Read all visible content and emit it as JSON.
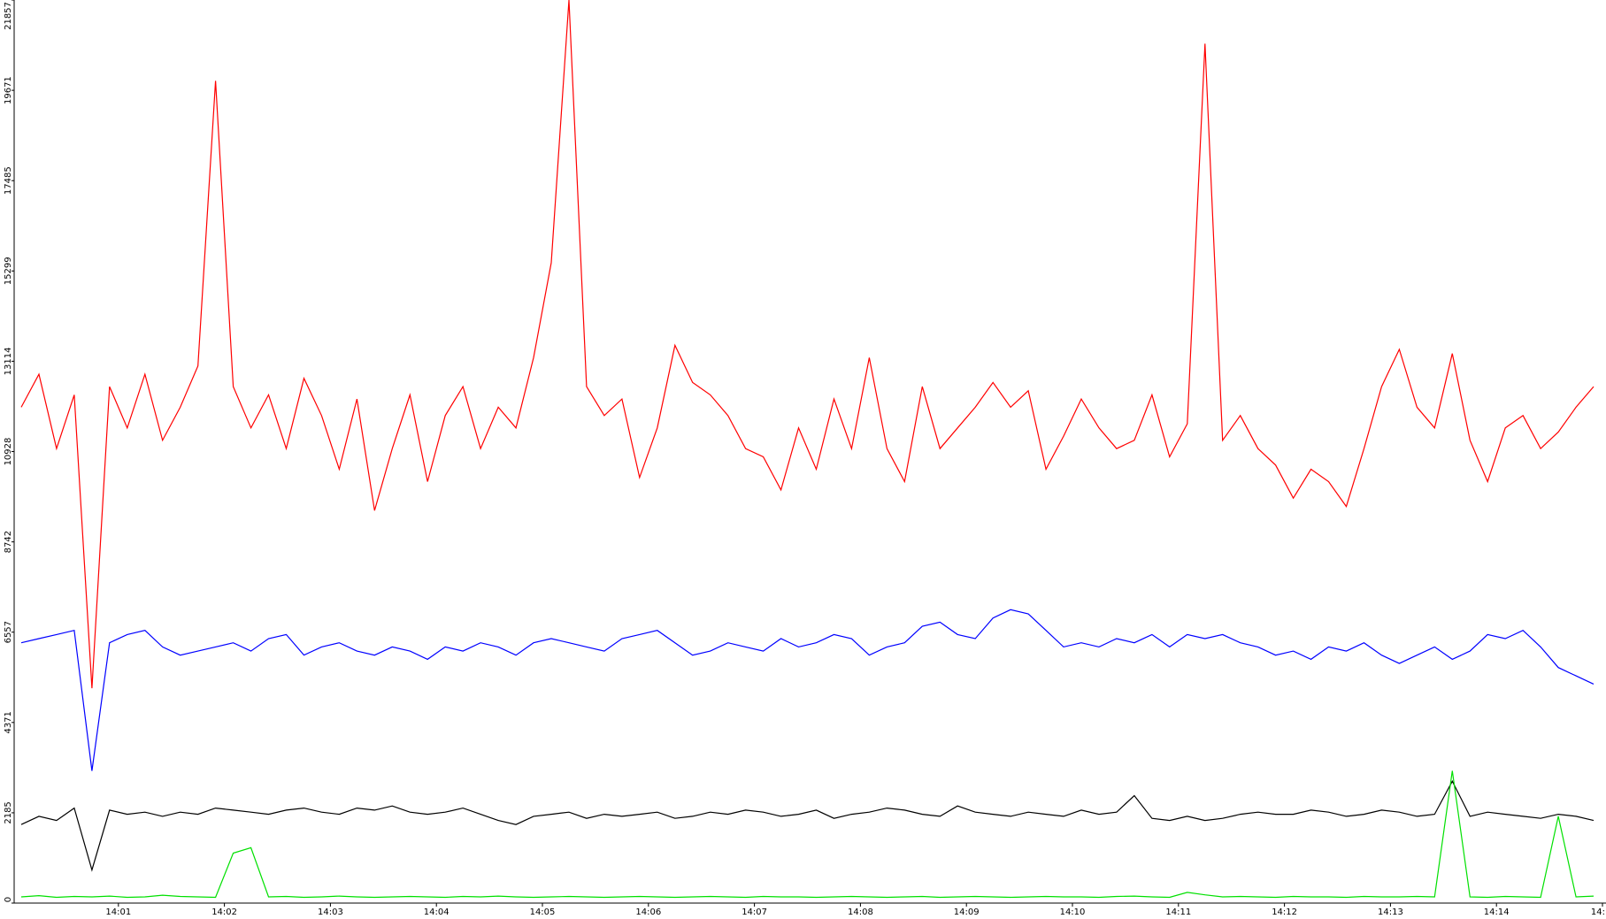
{
  "chart_data": {
    "type": "line",
    "x": [
      5,
      15,
      25,
      35,
      45,
      55,
      65,
      75,
      85,
      95,
      105,
      115,
      125,
      135,
      145,
      155,
      165,
      175,
      185,
      195,
      205,
      215,
      225,
      235,
      245,
      255,
      265,
      275,
      285,
      295,
      305,
      315,
      325,
      335,
      345,
      355,
      365,
      375,
      385,
      395,
      405,
      415,
      425,
      435,
      445,
      455,
      465,
      475,
      485,
      495,
      505,
      515,
      525,
      535,
      545,
      555,
      565,
      575,
      585,
      595,
      605,
      615,
      625,
      635,
      645,
      655,
      665,
      675,
      685,
      695,
      705,
      715,
      725,
      735,
      745,
      755,
      765,
      775,
      785,
      795,
      805,
      815,
      825,
      835,
      845,
      855,
      865,
      875,
      885,
      895
    ],
    "series": [
      {
        "color": "#ff0000",
        "values": [
          12000,
          12800,
          11000,
          12300,
          5200,
          12500,
          11500,
          12800,
          11200,
          12000,
          13000,
          19900,
          12500,
          11500,
          12300,
          11000,
          12700,
          11800,
          10500,
          12200,
          9500,
          11000,
          12300,
          10200,
          11800,
          12500,
          11000,
          12000,
          11500,
          13200,
          15500,
          21857,
          12500,
          11800,
          12200,
          10300,
          11500,
          13500,
          12600,
          12300,
          11800,
          11000,
          10800,
          10000,
          11500,
          10500,
          12200,
          11000,
          13200,
          11000,
          10200,
          12500,
          11000,
          11500,
          12000,
          12600,
          12000,
          12400,
          10500,
          11300,
          12200,
          11500,
          11000,
          11200,
          12300,
          10800,
          11600,
          20800,
          11200,
          11800,
          11000,
          10600,
          9800,
          10500,
          10200,
          9600,
          11000,
          12500,
          13400,
          12000,
          11500,
          13300,
          11200,
          10200,
          11500,
          11800,
          11000,
          11400,
          12000,
          12500
        ]
      },
      {
        "color": "#0000ff",
        "values": [
          6300,
          6400,
          6500,
          6600,
          3200,
          6300,
          6500,
          6600,
          6200,
          6000,
          6100,
          6200,
          6300,
          6100,
          6400,
          6500,
          6000,
          6200,
          6300,
          6100,
          6000,
          6200,
          6100,
          5900,
          6200,
          6100,
          6300,
          6200,
          6000,
          6300,
          6400,
          6300,
          6200,
          6100,
          6400,
          6500,
          6600,
          6300,
          6000,
          6100,
          6300,
          6200,
          6100,
          6400,
          6200,
          6300,
          6500,
          6400,
          6000,
          6200,
          6300,
          6700,
          6800,
          6500,
          6400,
          6900,
          7100,
          7000,
          6600,
          6200,
          6300,
          6200,
          6400,
          6300,
          6500,
          6200,
          6500,
          6400,
          6500,
          6300,
          6200,
          6000,
          6100,
          5900,
          6200,
          6100,
          6300,
          6000,
          5800,
          6000,
          6200,
          5900,
          6100,
          6500,
          6400,
          6600,
          6200,
          5700,
          5500,
          5300
        ]
      },
      {
        "color": "#000000",
        "values": [
          1900,
          2100,
          2000,
          2300,
          800,
          2250,
          2150,
          2200,
          2100,
          2200,
          2150,
          2300,
          2250,
          2200,
          2150,
          2250,
          2300,
          2200,
          2150,
          2300,
          2250,
          2350,
          2200,
          2150,
          2200,
          2300,
          2150,
          2000,
          1900,
          2100,
          2150,
          2200,
          2050,
          2150,
          2100,
          2150,
          2200,
          2050,
          2100,
          2200,
          2150,
          2250,
          2200,
          2100,
          2150,
          2250,
          2050,
          2150,
          2200,
          2300,
          2250,
          2150,
          2100,
          2350,
          2200,
          2150,
          2100,
          2200,
          2150,
          2100,
          2250,
          2150,
          2200,
          2600,
          2050,
          2000,
          2100,
          2000,
          2050,
          2150,
          2200,
          2150,
          2150,
          2250,
          2200,
          2100,
          2150,
          2250,
          2200,
          2100,
          2150,
          2950,
          2100,
          2200,
          2150,
          2100,
          2050,
          2150,
          2100,
          2000
        ]
      },
      {
        "color": "#00e000",
        "values": [
          150,
          180,
          140,
          160,
          150,
          170,
          140,
          150,
          190,
          160,
          150,
          140,
          1210,
          1340,
          150,
          160,
          140,
          150,
          170,
          150,
          140,
          150,
          160,
          150,
          140,
          160,
          150,
          170,
          150,
          140,
          150,
          160,
          150,
          140,
          150,
          160,
          150,
          140,
          150,
          160,
          150,
          140,
          160,
          150,
          150,
          140,
          150,
          160,
          150,
          140,
          150,
          160,
          140,
          150,
          160,
          150,
          140,
          150,
          160,
          150,
          150,
          140,
          160,
          170,
          150,
          140,
          260,
          200,
          150,
          160,
          150,
          140,
          160,
          150,
          150,
          140,
          160,
          150,
          150,
          160,
          150,
          3200,
          150,
          140,
          160,
          150,
          140,
          2100,
          150,
          170
        ]
      }
    ],
    "xlim": [
      1,
      902
    ],
    "xticks": [
      {
        "value": 60,
        "label": "14:01"
      },
      {
        "value": 120,
        "label": "14:02"
      },
      {
        "value": 180,
        "label": "14:03"
      },
      {
        "value": 240,
        "label": "14:04"
      },
      {
        "value": 300,
        "label": "14:05"
      },
      {
        "value": 360,
        "label": "14:06"
      },
      {
        "value": 420,
        "label": "14:07"
      },
      {
        "value": 480,
        "label": "14:08"
      },
      {
        "value": 540,
        "label": "14:09"
      },
      {
        "value": 600,
        "label": "14:10"
      },
      {
        "value": 660,
        "label": "14:11"
      },
      {
        "value": 720,
        "label": "14:12"
      },
      {
        "value": 780,
        "label": "14:13"
      },
      {
        "value": 840,
        "label": "14:14"
      },
      {
        "value": 900,
        "label": "14:"
      }
    ],
    "ylim": [
      0,
      21857
    ],
    "yticks": [
      0,
      2185,
      4371,
      6557,
      8742,
      10928,
      13114,
      15299,
      17485,
      19671,
      21857
    ]
  }
}
